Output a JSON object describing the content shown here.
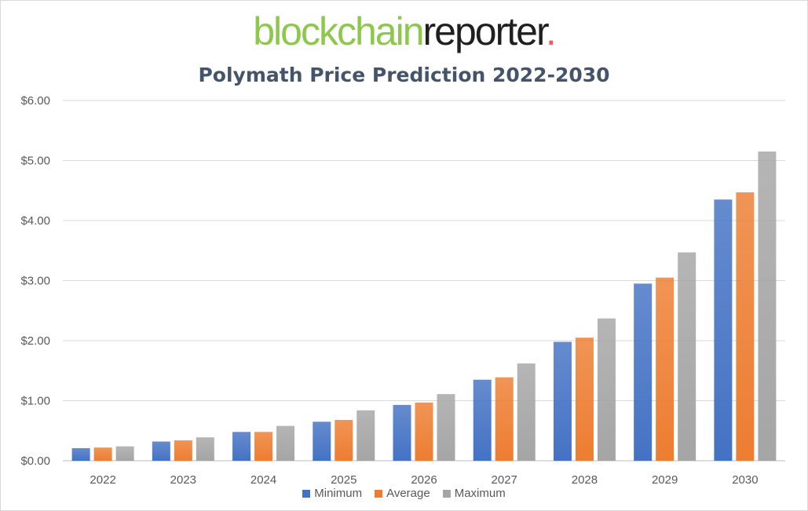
{
  "logo": {
    "part1": "blockchain",
    "part2": "reporter",
    "dot": "."
  },
  "chart_data": {
    "type": "bar",
    "title": "Polymath Price Prediction 2022-2030",
    "categories": [
      "2022",
      "2023",
      "2024",
      "2025",
      "2026",
      "2027",
      "2028",
      "2029",
      "2030"
    ],
    "series": [
      {
        "name": "Minimum",
        "color": "#4472c4",
        "values": [
          0.21,
          0.32,
          0.48,
          0.65,
          0.93,
          1.35,
          1.98,
          2.95,
          4.35
        ]
      },
      {
        "name": "Average",
        "color": "#ed7d31",
        "values": [
          0.22,
          0.34,
          0.48,
          0.68,
          0.97,
          1.39,
          2.05,
          3.05,
          4.47
        ]
      },
      {
        "name": "Maximum",
        "color": "#a5a5a5",
        "values": [
          0.24,
          0.39,
          0.58,
          0.84,
          1.11,
          1.62,
          2.37,
          3.47,
          5.15
        ]
      }
    ],
    "y_ticks": [
      "$0.00",
      "$1.00",
      "$2.00",
      "$3.00",
      "$4.00",
      "$5.00",
      "$6.00"
    ],
    "ylim": [
      0,
      6
    ],
    "grid": true,
    "legend_position": "bottom"
  }
}
